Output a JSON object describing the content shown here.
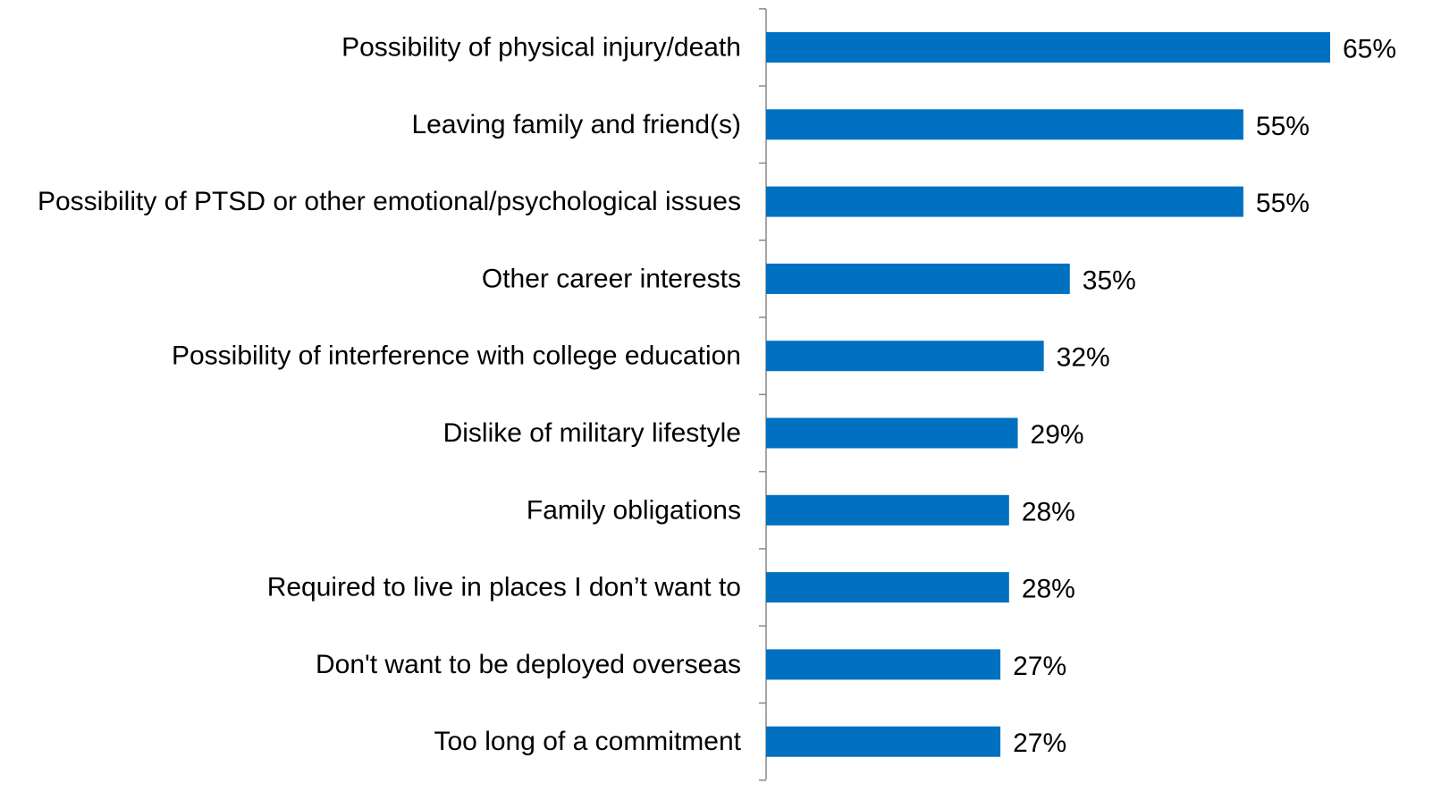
{
  "chart_data": {
    "type": "bar",
    "orientation": "horizontal",
    "categories": [
      "Possibility of physical injury/death",
      "Leaving family and friend(s)",
      "Possibility of PTSD or other emotional/psychological issues",
      "Other career interests",
      "Possibility of interference with college education",
      "Dislike of military lifestyle",
      "Family obligations",
      "Required to live in places I don’t want to",
      "Don't want to be deployed overseas",
      "Too long of a commitment"
    ],
    "values": [
      65,
      55,
      55,
      35,
      32,
      29,
      28,
      28,
      27,
      27
    ],
    "value_labels": [
      "65%",
      "55%",
      "55%",
      "35%",
      "32%",
      "29%",
      "28%",
      "28%",
      "27%",
      "27%"
    ],
    "unit": "%",
    "xlim": [
      0,
      65
    ],
    "grid": false,
    "legend": "none",
    "title": "",
    "xlabel": "",
    "ylabel": "",
    "colors": {
      "bar": "#0070C0",
      "axis": "#888888",
      "text": "#000000"
    }
  }
}
